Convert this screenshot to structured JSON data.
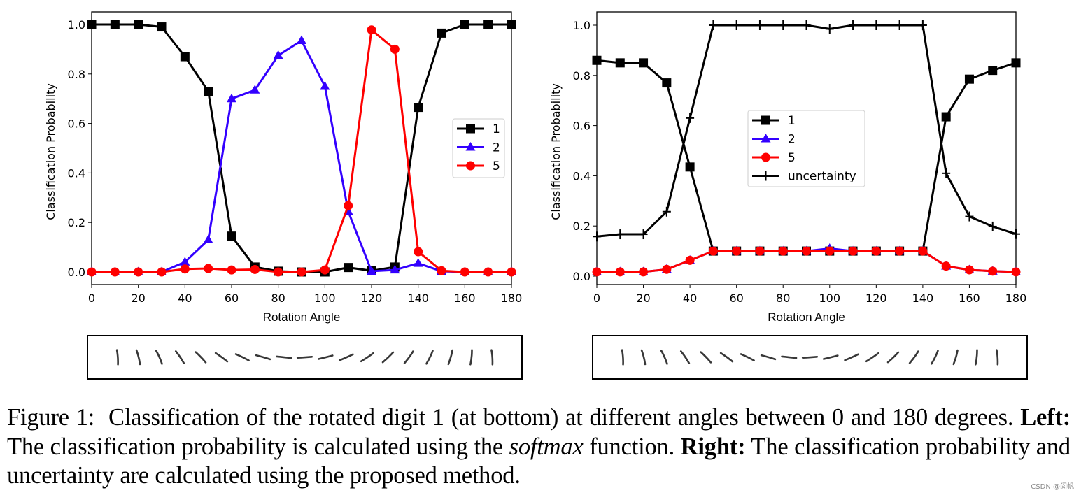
{
  "figure": {
    "caption": {
      "prefix": "Figure 1:",
      "text1": "Classification of the rotated digit 1 (at bottom) at different angles between 0 and 180 degrees.",
      "left_label": "Left:",
      "text2": "The classification probability is calculated using the",
      "softmax": "softmax",
      "text3": "function.",
      "right_label": "Right:",
      "text4": "The classification probability and uncertainty are calculated using the proposed method."
    },
    "watermark": "CSDN @闵帆",
    "digit_strip": {
      "description": "Rotated MNIST digit 1 images at 0..180 degrees",
      "angles": [
        0,
        10,
        20,
        30,
        40,
        50,
        60,
        70,
        80,
        90,
        100,
        110,
        120,
        130,
        140,
        150,
        160,
        170,
        180
      ]
    }
  },
  "chart_data": [
    {
      "type": "line",
      "title": "",
      "xlabel": "Rotation Angle",
      "ylabel": "Classification Probability",
      "xlim": [
        0,
        180
      ],
      "ylim": [
        -0.05,
        1.05
      ],
      "xticks": [
        "0",
        "20",
        "40",
        "60",
        "80",
        "100",
        "120",
        "140",
        "160",
        "180"
      ],
      "yticks": [
        "0.0",
        "0.2",
        "0.4",
        "0.6",
        "0.8",
        "1.0"
      ],
      "grid": false,
      "legend_position": "center-right",
      "x": [
        0,
        10,
        20,
        30,
        40,
        50,
        60,
        70,
        80,
        90,
        100,
        110,
        120,
        130,
        140,
        150,
        160,
        170,
        180
      ],
      "series": [
        {
          "name": "1",
          "color": "#000000",
          "marker": "square",
          "values": [
            1.0,
            1.0,
            1.0,
            0.99,
            0.87,
            0.73,
            0.145,
            0.02,
            0.003,
            0.0,
            0.0,
            0.018,
            0.005,
            0.02,
            0.665,
            0.965,
            1.0,
            1.0,
            1.0
          ]
        },
        {
          "name": "2",
          "color": "#3300ff",
          "marker": "triangle",
          "values": [
            0.0,
            0.0,
            0.0,
            0.0,
            0.04,
            0.13,
            0.7,
            0.735,
            0.875,
            0.935,
            0.75,
            0.245,
            0.003,
            0.008,
            0.035,
            0.003,
            0.0,
            0.0,
            0.0
          ]
        },
        {
          "name": "5",
          "color": "#ff0000",
          "marker": "circle",
          "values": [
            0.0,
            0.0,
            0.0,
            0.0,
            0.012,
            0.014,
            0.008,
            0.01,
            0.0,
            0.0,
            0.008,
            0.268,
            0.978,
            0.9,
            0.082,
            0.005,
            0.0,
            0.0,
            0.0
          ]
        }
      ]
    },
    {
      "type": "line",
      "title": "",
      "xlabel": "Rotation Angle",
      "ylabel": "Classification Probability",
      "xlim": [
        0,
        180
      ],
      "ylim": [
        -0.02,
        1.05
      ],
      "xticks": [
        "0",
        "20",
        "40",
        "60",
        "80",
        "100",
        "120",
        "140",
        "160",
        "180"
      ],
      "yticks": [
        "0.0",
        "0.2",
        "0.4",
        "0.6",
        "0.8",
        "1.0"
      ],
      "grid": false,
      "legend_position": "center",
      "x": [
        0,
        10,
        20,
        30,
        40,
        50,
        60,
        70,
        80,
        90,
        100,
        110,
        120,
        130,
        140,
        150,
        160,
        170,
        180
      ],
      "series": [
        {
          "name": "1",
          "color": "#000000",
          "marker": "square",
          "values": [
            0.86,
            0.85,
            0.85,
            0.77,
            0.435,
            0.1,
            0.1,
            0.1,
            0.1,
            0.1,
            0.1,
            0.1,
            0.1,
            0.1,
            0.1,
            0.635,
            0.785,
            0.82,
            0.85
          ]
        },
        {
          "name": "2",
          "color": "#3300ff",
          "marker": "triangle",
          "values": [
            0.017,
            0.017,
            0.017,
            0.027,
            0.063,
            0.1,
            0.1,
            0.1,
            0.1,
            0.1,
            0.11,
            0.1,
            0.1,
            0.1,
            0.1,
            0.04,
            0.025,
            0.02,
            0.017
          ]
        },
        {
          "name": "5",
          "color": "#ff0000",
          "marker": "circle",
          "values": [
            0.017,
            0.017,
            0.017,
            0.027,
            0.063,
            0.1,
            0.1,
            0.1,
            0.1,
            0.1,
            0.1,
            0.1,
            0.1,
            0.1,
            0.1,
            0.04,
            0.025,
            0.02,
            0.017
          ]
        },
        {
          "name": "uncertainty",
          "color": "#000000",
          "marker": "plus",
          "values": [
            0.158,
            0.167,
            0.167,
            0.257,
            0.63,
            1.0,
            1.0,
            1.0,
            1.0,
            1.0,
            0.985,
            1.0,
            1.0,
            1.0,
            1.0,
            0.41,
            0.238,
            0.198,
            0.168
          ]
        }
      ]
    }
  ]
}
